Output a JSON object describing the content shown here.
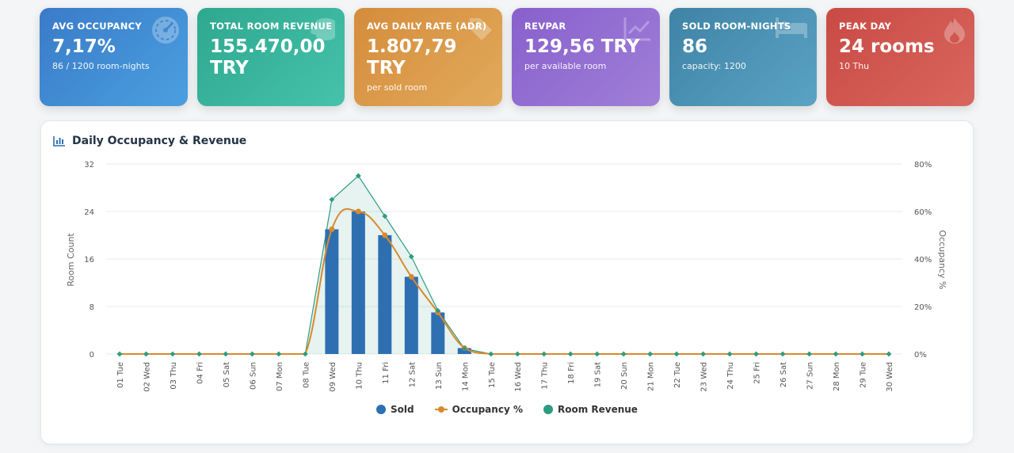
{
  "kpis": [
    {
      "label": "AVG OCCUPANCY",
      "value": "7,17%",
      "sub": "86 / 1200 room-nights",
      "icon": "gauge-icon"
    },
    {
      "label": "TOTAL ROOM REVENUE",
      "value": "155.470,00 TRY",
      "sub": "",
      "icon": "coins-icon"
    },
    {
      "label": "AVG DAILY RATE (ADR)",
      "value": "1.807,79 TRY",
      "sub": "per sold room",
      "icon": "tag-icon"
    },
    {
      "label": "REVPAR",
      "value": "129,56 TRY",
      "sub": "per available room",
      "icon": "trend-chart-icon"
    },
    {
      "label": "SOLD ROOM-NIGHTS",
      "value": "86",
      "sub": "capacity: 1200",
      "icon": "bed-icon"
    },
    {
      "label": "PEAK DAY",
      "value": "24 rooms",
      "sub": "10 Thu",
      "icon": "fire-icon"
    }
  ],
  "chart_title": "Daily Occupancy & Revenue",
  "chart_data": {
    "type": "bar",
    "categories": [
      "01 Tue",
      "02 Wed",
      "03 Thu",
      "04 Fri",
      "05 Sat",
      "06 Sun",
      "07 Mon",
      "08 Tue",
      "09 Wed",
      "10 Thu",
      "11 Fri",
      "12 Sat",
      "13 Sun",
      "14 Mon",
      "15 Tue",
      "16 Wed",
      "17 Thu",
      "18 Fri",
      "19 Sat",
      "20 Sun",
      "21 Mon",
      "22 Tue",
      "23 Wed",
      "24 Thu",
      "25 Fri",
      "26 Sat",
      "27 Sun",
      "28 Mon",
      "29 Tue",
      "30 Wed"
    ],
    "series": [
      {
        "name": "Sold",
        "type": "bar",
        "axis": "left",
        "color": "#2e6fb2",
        "values": [
          0,
          0,
          0,
          0,
          0,
          0,
          0,
          0,
          21,
          24,
          20,
          13,
          7,
          1,
          0,
          0,
          0,
          0,
          0,
          0,
          0,
          0,
          0,
          0,
          0,
          0,
          0,
          0,
          0,
          0
        ]
      },
      {
        "name": "Occupancy %",
        "type": "line",
        "axis": "right",
        "color": "#d88a2e",
        "values": [
          0,
          0,
          0,
          0,
          0,
          0,
          0,
          0,
          52.5,
          60,
          50,
          32.5,
          17.5,
          2.5,
          0,
          0,
          0,
          0,
          0,
          0,
          0,
          0,
          0,
          0,
          0,
          0,
          0,
          0,
          0,
          0
        ]
      },
      {
        "name": "Room Revenue",
        "type": "area",
        "axis": "left",
        "color": "#2e9c80",
        "values": [
          0,
          0,
          0,
          0,
          0,
          0,
          0,
          0,
          26,
          30,
          23.2,
          16.4,
          7.3,
          0.9,
          0,
          0,
          0,
          0,
          0,
          0,
          0,
          0,
          0,
          0,
          0,
          0,
          0,
          0,
          0,
          0
        ]
      }
    ],
    "ylabel": "Room Count",
    "ylabel_right": "Occupancy %",
    "ylim": [
      0,
      32
    ],
    "yticks": [
      "0",
      "8",
      "16",
      "24",
      "32"
    ],
    "ylim_right": [
      0,
      80
    ],
    "yticks_right": [
      "0%",
      "20%",
      "40%",
      "60%",
      "80%"
    ],
    "grid": true,
    "legend": "bottom"
  }
}
